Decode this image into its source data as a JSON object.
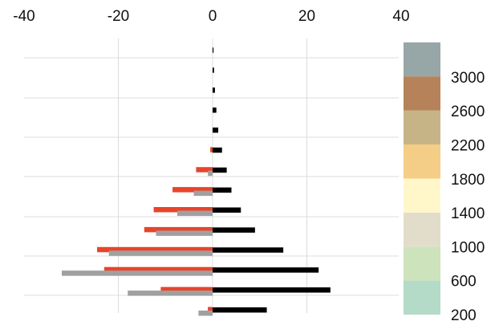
{
  "chart_data": {
    "type": "bar",
    "orientation": "horizontal",
    "xlim": [
      -40,
      40
    ],
    "x_ticks": [
      "-40",
      "-20",
      "0",
      "20",
      "40"
    ],
    "y_ticks": [
      "200",
      "600",
      "1000",
      "1400",
      "1800",
      "2200",
      "2600",
      "3000"
    ],
    "ylim": [
      0,
      3000
    ],
    "grid": true,
    "legend": "right (altitude color scale)",
    "bar_groups": [
      {
        "altitude": 3000,
        "red": 0,
        "gray": 0,
        "black": 0.2
      },
      {
        "altitude": 2800,
        "red": 0,
        "gray": 0,
        "black": 0.3
      },
      {
        "altitude": 2600,
        "red": 0,
        "gray": 0,
        "black": 0.5
      },
      {
        "altitude": 2400,
        "red": 0,
        "gray": 0,
        "black": 0.8
      },
      {
        "altitude": 2200,
        "red": 0,
        "gray": 0,
        "black": 1.2
      },
      {
        "altitude": 2000,
        "red": -0.5,
        "gray": 0,
        "black": 2
      },
      {
        "altitude": 1800,
        "red": -3.5,
        "gray": -1,
        "black": 3
      },
      {
        "altitude": 1600,
        "red": -8.5,
        "gray": -4,
        "black": 4
      },
      {
        "altitude": 1400,
        "red": -12.5,
        "gray": -7.5,
        "black": 6
      },
      {
        "altitude": 1200,
        "red": -14.5,
        "gray": -12,
        "black": 9
      },
      {
        "altitude": 1000,
        "red": -24.5,
        "gray": -22,
        "black": 15
      },
      {
        "altitude": 800,
        "red": -23,
        "gray": -32,
        "black": 22.5
      },
      {
        "altitude": 600,
        "red": -11,
        "gray": -18,
        "black": 25
      },
      {
        "altitude": 400,
        "red": -1,
        "gray": -3,
        "black": 11.5
      }
    ],
    "colors": {
      "red": "#e8442a",
      "gray": "#a0a0a0",
      "black": "#000000",
      "grid": "#dcdcdc"
    },
    "color_scale": [
      {
        "from": 200,
        "to": 600,
        "color": "#b3dbc7"
      },
      {
        "from": 600,
        "to": 1000,
        "color": "#cde3bb"
      },
      {
        "from": 1000,
        "to": 1400,
        "color": "#e2ddca"
      },
      {
        "from": 1400,
        "to": 1800,
        "color": "#fff7c9"
      },
      {
        "from": 1800,
        "to": 2200,
        "color": "#f4cd86"
      },
      {
        "from": 2200,
        "to": 2600,
        "color": "#c6b486"
      },
      {
        "from": 2600,
        "to": 3000,
        "color": "#b5825a"
      },
      {
        "from": 3000,
        "to": 3400,
        "color": "#97a6a7"
      }
    ]
  }
}
